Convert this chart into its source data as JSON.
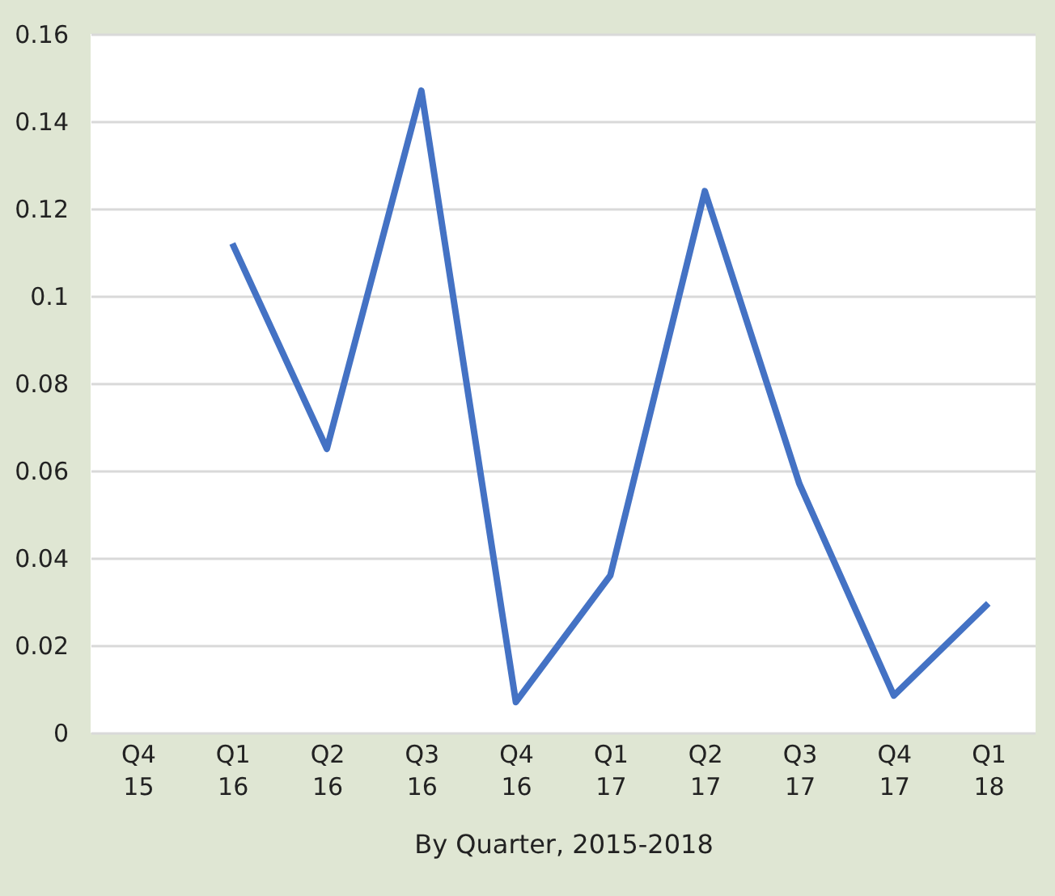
{
  "chart_data": {
    "type": "line",
    "xlabel": "By Quarter, 2015-2018",
    "categories": [
      "Q4 15",
      "Q1 16",
      "Q2 16",
      "Q3 16",
      "Q4 16",
      "Q1 17",
      "Q2 17",
      "Q3 17",
      "Q4 17",
      "Q1 18"
    ],
    "series": [
      {
        "color": "#4472c4",
        "values": [
          null,
          0.112,
          0.065,
          0.147,
          0.007,
          0.036,
          0.124,
          0.057,
          0.0085,
          0.0296
        ]
      }
    ],
    "ylim": [
      0,
      0.16
    ],
    "yticks": [
      0,
      0.02,
      0.04,
      0.06,
      0.08,
      0.1,
      0.12,
      0.14,
      0.16
    ],
    "grid": "y",
    "legend": false,
    "marker": "none",
    "line_style": "solid"
  }
}
